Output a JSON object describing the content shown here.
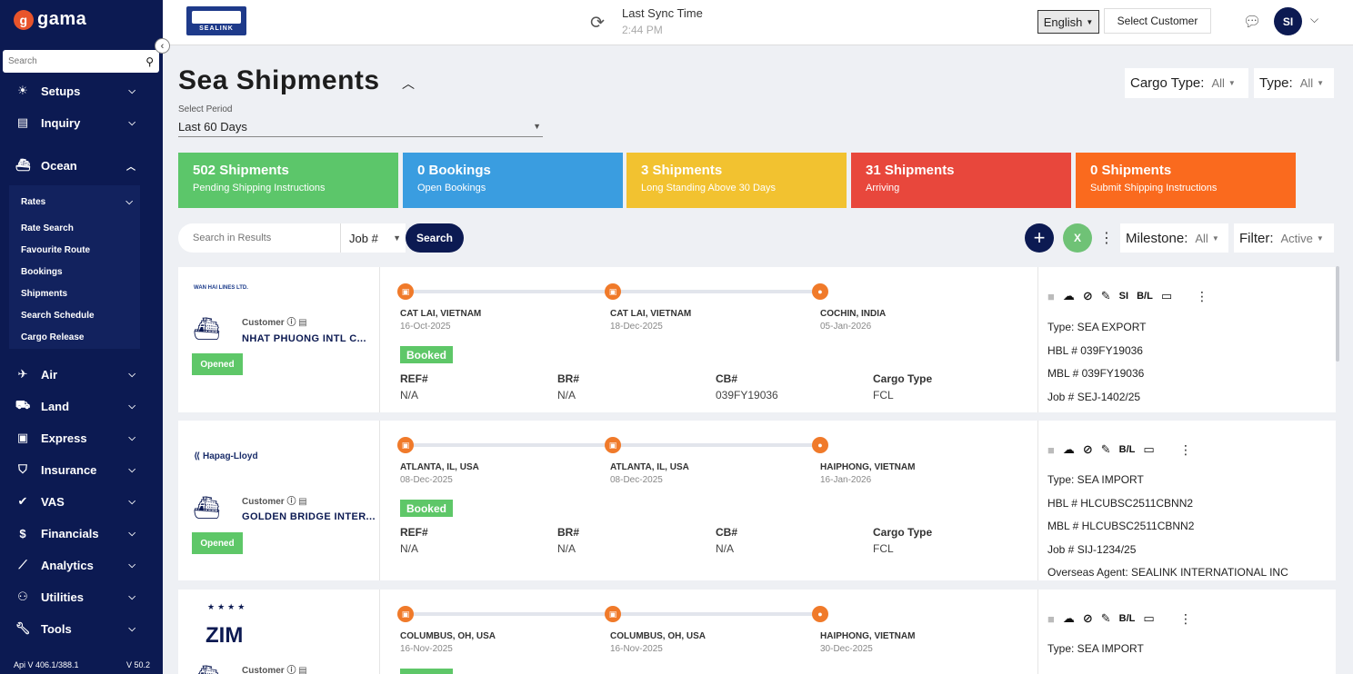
{
  "sidebar": {
    "logo_text": "gama",
    "search_placeholder": "Search",
    "collapse_icon": "chevron-left-icon",
    "menu": [
      {
        "label": "Setups"
      },
      {
        "label": "Inquiry"
      },
      {
        "label": "Ocean"
      },
      {
        "label": "Air"
      },
      {
        "label": "Land"
      },
      {
        "label": "Express"
      },
      {
        "label": "Insurance"
      },
      {
        "label": "VAS"
      },
      {
        "label": "Financials"
      },
      {
        "label": "Analytics"
      },
      {
        "label": "Utilities"
      },
      {
        "label": "Tools"
      }
    ],
    "ocean_submenu": {
      "rates_label": "Rates",
      "items": [
        "Rate Search",
        "Favourite Route",
        "Bookings",
        "Shipments",
        "Search Schedule",
        "Cargo Release"
      ]
    },
    "footer": {
      "api": "Api V 406.1/388.1",
      "version": "V 50.2"
    }
  },
  "topbar": {
    "brand_logo_text": "SEALINK",
    "sync_title": "Last Sync Time",
    "sync_time": "2:44 PM",
    "language": "English",
    "select_customer": "Select Customer",
    "avatar_initials": "SI"
  },
  "page": {
    "title": "Sea Shipments",
    "period_label": "Select Period",
    "period_value": "Last 60 Days",
    "cargo_type_label": "Cargo Type:",
    "cargo_type_value": "All",
    "type_label": "Type:",
    "type_value": "All"
  },
  "stats": [
    {
      "big": "502 Shipments",
      "small": "Pending Shipping Instructions",
      "color": "#5cc66a"
    },
    {
      "big": "0 Bookings",
      "small": "Open Bookings",
      "color": "#3a9de0"
    },
    {
      "big": "3 Shipments",
      "small": "Long Standing Above 30 Days",
      "color": "#f2c230"
    },
    {
      "big": "31 Shipments",
      "small": "Arriving",
      "color": "#e8473c"
    },
    {
      "big": "0 Shipments",
      "small": "Submit Shipping Instructions",
      "color": "#fa6a1e"
    }
  ],
  "toolbar": {
    "search_placeholder": "Search in Results",
    "job_select": "Job #",
    "search_button": "Search",
    "milestone_label": "Milestone:",
    "milestone_value": "All",
    "filter_label": "Filter:",
    "filter_value": "Active"
  },
  "shipments": [
    {
      "carrier": "WAN HAI LINES LTD.",
      "customer_label": "Customer",
      "customer": "NHAT PHUONG INTL C...",
      "status": "Opened",
      "booking_status": "Booked",
      "stops": [
        {
          "name": "CAT LAI, VIETNAM",
          "date": "16-Oct-2025"
        },
        {
          "name": "CAT LAI, VIETNAM",
          "date": "18-Dec-2025"
        },
        {
          "name": "COCHIN, INDIA",
          "date": "05-Jan-2026"
        }
      ],
      "fields": [
        {
          "label": "REF#",
          "value": "N/A"
        },
        {
          "label": "BR#",
          "value": "N/A"
        },
        {
          "label": "CB#",
          "value": "039FY19036"
        },
        {
          "label": "Cargo Type",
          "value": "FCL"
        }
      ],
      "actions": [
        "SI",
        "B/L"
      ],
      "details": [
        "Type: SEA EXPORT",
        "HBL # 039FY19036",
        "MBL # 039FY19036",
        "Job # SEJ-1402/25"
      ]
    },
    {
      "carrier": "Hapag-Lloyd",
      "customer_label": "Customer",
      "customer": "GOLDEN BRIDGE INTER...",
      "status": "Opened",
      "booking_status": "Booked",
      "stops": [
        {
          "name": "ATLANTA, IL, USA",
          "date": "08-Dec-2025"
        },
        {
          "name": "ATLANTA, IL, USA",
          "date": "08-Dec-2025"
        },
        {
          "name": "HAIPHONG, VIETNAM",
          "date": "16-Jan-2026"
        }
      ],
      "fields": [
        {
          "label": "REF#",
          "value": "N/A"
        },
        {
          "label": "BR#",
          "value": "N/A"
        },
        {
          "label": "CB#",
          "value": "N/A"
        },
        {
          "label": "Cargo Type",
          "value": "FCL"
        }
      ],
      "actions": [
        "B/L"
      ],
      "details": [
        "Type: SEA IMPORT",
        "HBL # HLCUBSC2511CBNN2",
        "MBL # HLCUBSC2511CBNN2",
        "Job # SIJ-1234/25",
        "Overseas Agent: SEALINK INTERNATIONAL INC"
      ]
    },
    {
      "carrier": "ZIM",
      "customer_label": "Customer",
      "stops": [
        {
          "name": "COLUMBUS, OH, USA",
          "date": "16-Nov-2025"
        },
        {
          "name": "COLUMBUS, OH, USA",
          "date": "16-Nov-2025"
        },
        {
          "name": "HAIPHONG, VIETNAM",
          "date": "30-Dec-2025"
        }
      ],
      "actions": [
        "B/L"
      ],
      "details": [
        "Type: SEA IMPORT"
      ]
    }
  ]
}
